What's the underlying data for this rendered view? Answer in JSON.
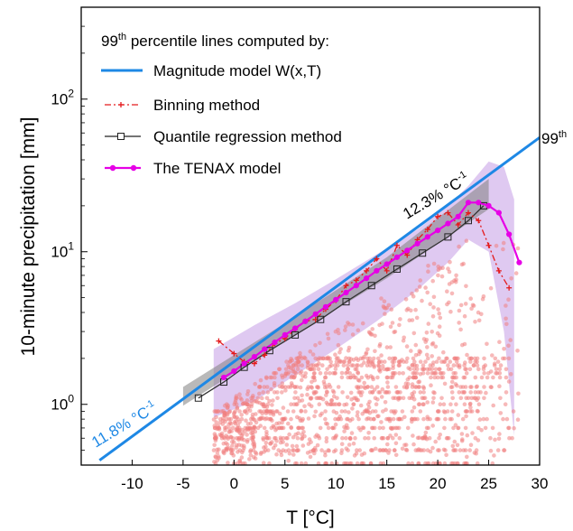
{
  "chart_data": {
    "type": "scatter",
    "title": "",
    "xlabel": "T [°C]",
    "ylabel": "10-minute precipitation [mm]",
    "xlim": [
      -15,
      30
    ],
    "ylim": [
      0.4,
      400
    ],
    "yscale": "log",
    "x_ticks": [
      -10,
      -5,
      0,
      5,
      10,
      15,
      20,
      25,
      30
    ],
    "x_tick_labels": [
      "-10",
      "-5",
      "0",
      "5",
      "10",
      "15",
      "20",
      "25",
      "30"
    ],
    "y_tick_exponents": [
      "0",
      "1",
      "2"
    ],
    "y_tick_values": [
      1,
      10,
      100
    ],
    "legend": {
      "title": "99th percentile lines computed by:",
      "title_prefix": "99",
      "title_sup": "th",
      "title_rest": " percentile lines computed by:",
      "entries": [
        "Magnitude model W(x,T)",
        "Binning method",
        "Quantile regression method",
        "The TENAX model"
      ],
      "placement": "top-left"
    },
    "colors": {
      "magnitude": "#1e88e5",
      "binning": "#e41a1c",
      "quantile": "#333333",
      "tenax": "#e600e6",
      "band_purple": "#c9a5e8",
      "band_gray": "#808080",
      "points": "#f08080"
    },
    "annotations": {
      "right_label": "99th",
      "right_label_prefix": "99",
      "right_label_sup": "th",
      "low_rate": "11.8% °C",
      "low_rate_sup": "-1",
      "high_rate": "12.3% °C",
      "high_rate_sup": "-1"
    },
    "series": [
      {
        "name": "Magnitude model W(x,T)",
        "style": "line",
        "x": [
          -13.2,
          30
        ],
        "y": [
          0.43,
          56
        ]
      },
      {
        "name": "Binning method",
        "style": "dash-dot-plus",
        "x": [
          -1.5,
          0,
          1,
          2,
          3,
          4,
          5,
          6,
          7,
          8,
          9,
          10,
          11,
          12,
          13,
          14,
          15,
          16,
          17,
          18,
          19,
          20,
          21,
          22,
          23,
          24,
          25,
          26,
          27
        ],
        "y": [
          2.6,
          2.15,
          1.9,
          1.85,
          2.1,
          2.5,
          2.7,
          3.1,
          3.5,
          3.6,
          4.2,
          4.8,
          6.0,
          6.5,
          7.5,
          9.0,
          7.5,
          11,
          9.5,
          12,
          14,
          17,
          18,
          15,
          18,
          16,
          11,
          7.5,
          5.8
        ]
      },
      {
        "name": "Quantile regression method",
        "style": "line-square",
        "x": [
          -3.5,
          -1,
          1,
          3.5,
          6,
          8.5,
          11,
          13.5,
          16,
          18.5,
          21,
          23,
          24.5
        ],
        "y": [
          1.1,
          1.4,
          1.75,
          2.25,
          2.85,
          3.6,
          4.7,
          6.0,
          7.7,
          9.8,
          12.5,
          16,
          20
        ]
      },
      {
        "name": "The TENAX model",
        "style": "line-dot",
        "x": [
          -1,
          0,
          1,
          2,
          3,
          4,
          5,
          6,
          7,
          8,
          9,
          10,
          11,
          12,
          13,
          14,
          15,
          16,
          17,
          18,
          19,
          20,
          21,
          22,
          23,
          24,
          25,
          26,
          27,
          28
        ],
        "y": [
          1.5,
          1.65,
          1.85,
          2.05,
          2.3,
          2.55,
          2.85,
          3.15,
          3.5,
          3.9,
          4.35,
          4.85,
          5.4,
          6.0,
          6.7,
          7.5,
          8.3,
          9.2,
          10.2,
          11.3,
          12.5,
          13.8,
          15.3,
          17,
          21,
          21,
          20,
          18,
          13,
          8.5
        ]
      }
    ],
    "observations_note": "Scatter of observed 10-minute precipitation vs temperature (pale red points)"
  }
}
